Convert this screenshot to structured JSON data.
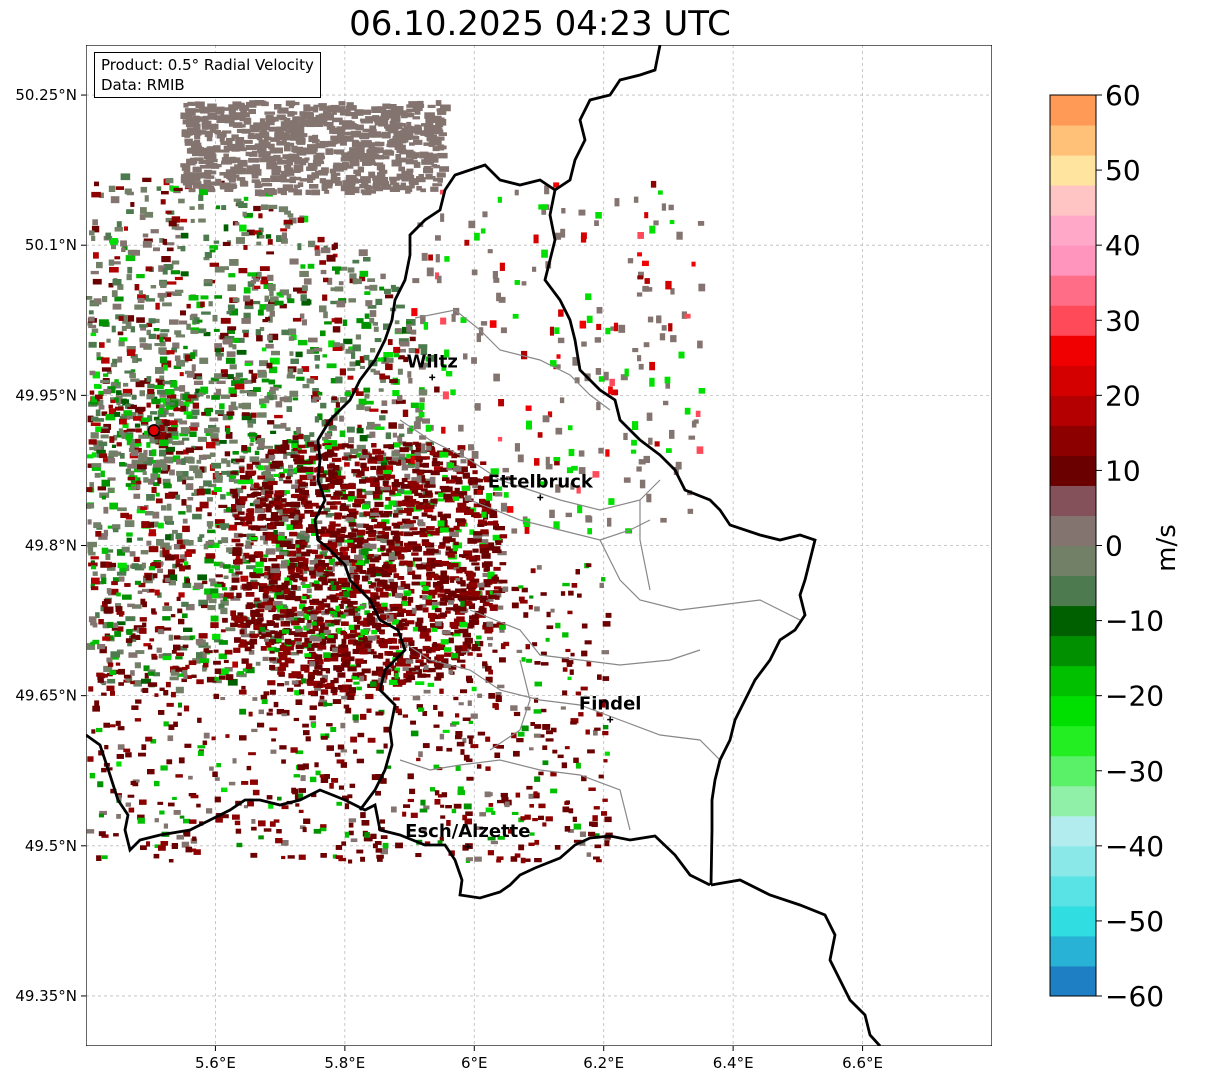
{
  "title": "06.10.2025 04:23 UTC",
  "info_box": {
    "product": "Product: 0.5° Radial Velocity",
    "source": "Data: RMIB"
  },
  "map": {
    "lon_range": [
      5.4,
      6.8
    ],
    "lat_range": [
      49.3,
      50.3
    ],
    "lon_ticks": [
      {
        "value": 5.6,
        "label": "5.6°E"
      },
      {
        "value": 5.8,
        "label": "5.8°E"
      },
      {
        "value": 6.0,
        "label": "6°E"
      },
      {
        "value": 6.2,
        "label": "6.2°E"
      },
      {
        "value": 6.4,
        "label": "6.4°E"
      },
      {
        "value": 6.6,
        "label": "6.6°E"
      }
    ],
    "lat_ticks": [
      {
        "value": 49.35,
        "label": "49.35°N"
      },
      {
        "value": 49.5,
        "label": "49.5°N"
      },
      {
        "value": 49.65,
        "label": "49.65°N"
      },
      {
        "value": 49.8,
        "label": "49.8°N"
      },
      {
        "value": 49.95,
        "label": "49.95°N"
      },
      {
        "value": 50.1,
        "label": "50.1°N"
      },
      {
        "value": 50.25,
        "label": "50.25°N"
      }
    ],
    "grid": true,
    "radar_site": {
      "lon": 5.505,
      "lat": 49.915,
      "color": "#e00000"
    },
    "cities": [
      {
        "name": "Wiltz",
        "lon": 5.935,
        "lat": 49.968
      },
      {
        "name": "Ettelbruck",
        "lon": 6.102,
        "lat": 49.848
      },
      {
        "name": "Findel",
        "lon": 6.21,
        "lat": 49.626
      },
      {
        "name": "Esch/Alzette",
        "lon": 5.99,
        "lat": 49.499
      }
    ],
    "border_color": "#000000",
    "canton_color": "#888888"
  },
  "colorbar": {
    "label": "m/s",
    "range": [
      -60,
      60
    ],
    "ticks": [
      {
        "value": 60,
        "label": "60"
      },
      {
        "value": 50,
        "label": "50"
      },
      {
        "value": 40,
        "label": "40"
      },
      {
        "value": 30,
        "label": "30"
      },
      {
        "value": 20,
        "label": "20"
      },
      {
        "value": 10,
        "label": "10"
      },
      {
        "value": 0,
        "label": "0"
      },
      {
        "value": -10,
        "label": "−10"
      },
      {
        "value": -20,
        "label": "−20"
      },
      {
        "value": -30,
        "label": "−30"
      },
      {
        "value": -40,
        "label": "−40"
      },
      {
        "value": -50,
        "label": "−50"
      },
      {
        "value": -60,
        "label": "−60"
      }
    ],
    "stops": [
      {
        "from": -60,
        "to": -56,
        "color": "#1f7fc4"
      },
      {
        "from": -56,
        "to": -52,
        "color": "#27b2d6"
      },
      {
        "from": -52,
        "to": -48,
        "color": "#30dde0"
      },
      {
        "from": -48,
        "to": -44,
        "color": "#5ae3e4"
      },
      {
        "from": -44,
        "to": -40,
        "color": "#8ae8e8"
      },
      {
        "from": -40,
        "to": -36,
        "color": "#b2ecee"
      },
      {
        "from": -36,
        "to": -32,
        "color": "#90f0a8"
      },
      {
        "from": -32,
        "to": -28,
        "color": "#5af068"
      },
      {
        "from": -28,
        "to": -24,
        "color": "#22ee22"
      },
      {
        "from": -24,
        "to": -20,
        "color": "#00e000"
      },
      {
        "from": -20,
        "to": -16,
        "color": "#00c000"
      },
      {
        "from": -16,
        "to": -12,
        "color": "#009000"
      },
      {
        "from": -12,
        "to": -8,
        "color": "#006000"
      },
      {
        "from": -8,
        "to": -4,
        "color": "#4e7a50"
      },
      {
        "from": -4,
        "to": 0,
        "color": "#728068"
      },
      {
        "from": 0,
        "to": 4,
        "color": "#847470"
      },
      {
        "from": 4,
        "to": 8,
        "color": "#84505a"
      },
      {
        "from": 8,
        "to": 12,
        "color": "#6a0000"
      },
      {
        "from": 12,
        "to": 16,
        "color": "#8c0000"
      },
      {
        "from": 16,
        "to": 20,
        "color": "#b40000"
      },
      {
        "from": 20,
        "to": 24,
        "color": "#d40000"
      },
      {
        "from": 24,
        "to": 28,
        "color": "#f00000"
      },
      {
        "from": 28,
        "to": 32,
        "color": "#ff4a5a"
      },
      {
        "from": 32,
        "to": 36,
        "color": "#ff6e86"
      },
      {
        "from": 36,
        "to": 40,
        "color": "#ff94bc"
      },
      {
        "from": 40,
        "to": 44,
        "color": "#ffa8c8"
      },
      {
        "from": 44,
        "to": 48,
        "color": "#ffc4c4"
      },
      {
        "from": 48,
        "to": 52,
        "color": "#ffe4a0"
      },
      {
        "from": 52,
        "to": 56,
        "color": "#ffc078"
      },
      {
        "from": 56,
        "to": 60,
        "color": "#ff9a56"
      }
    ]
  }
}
